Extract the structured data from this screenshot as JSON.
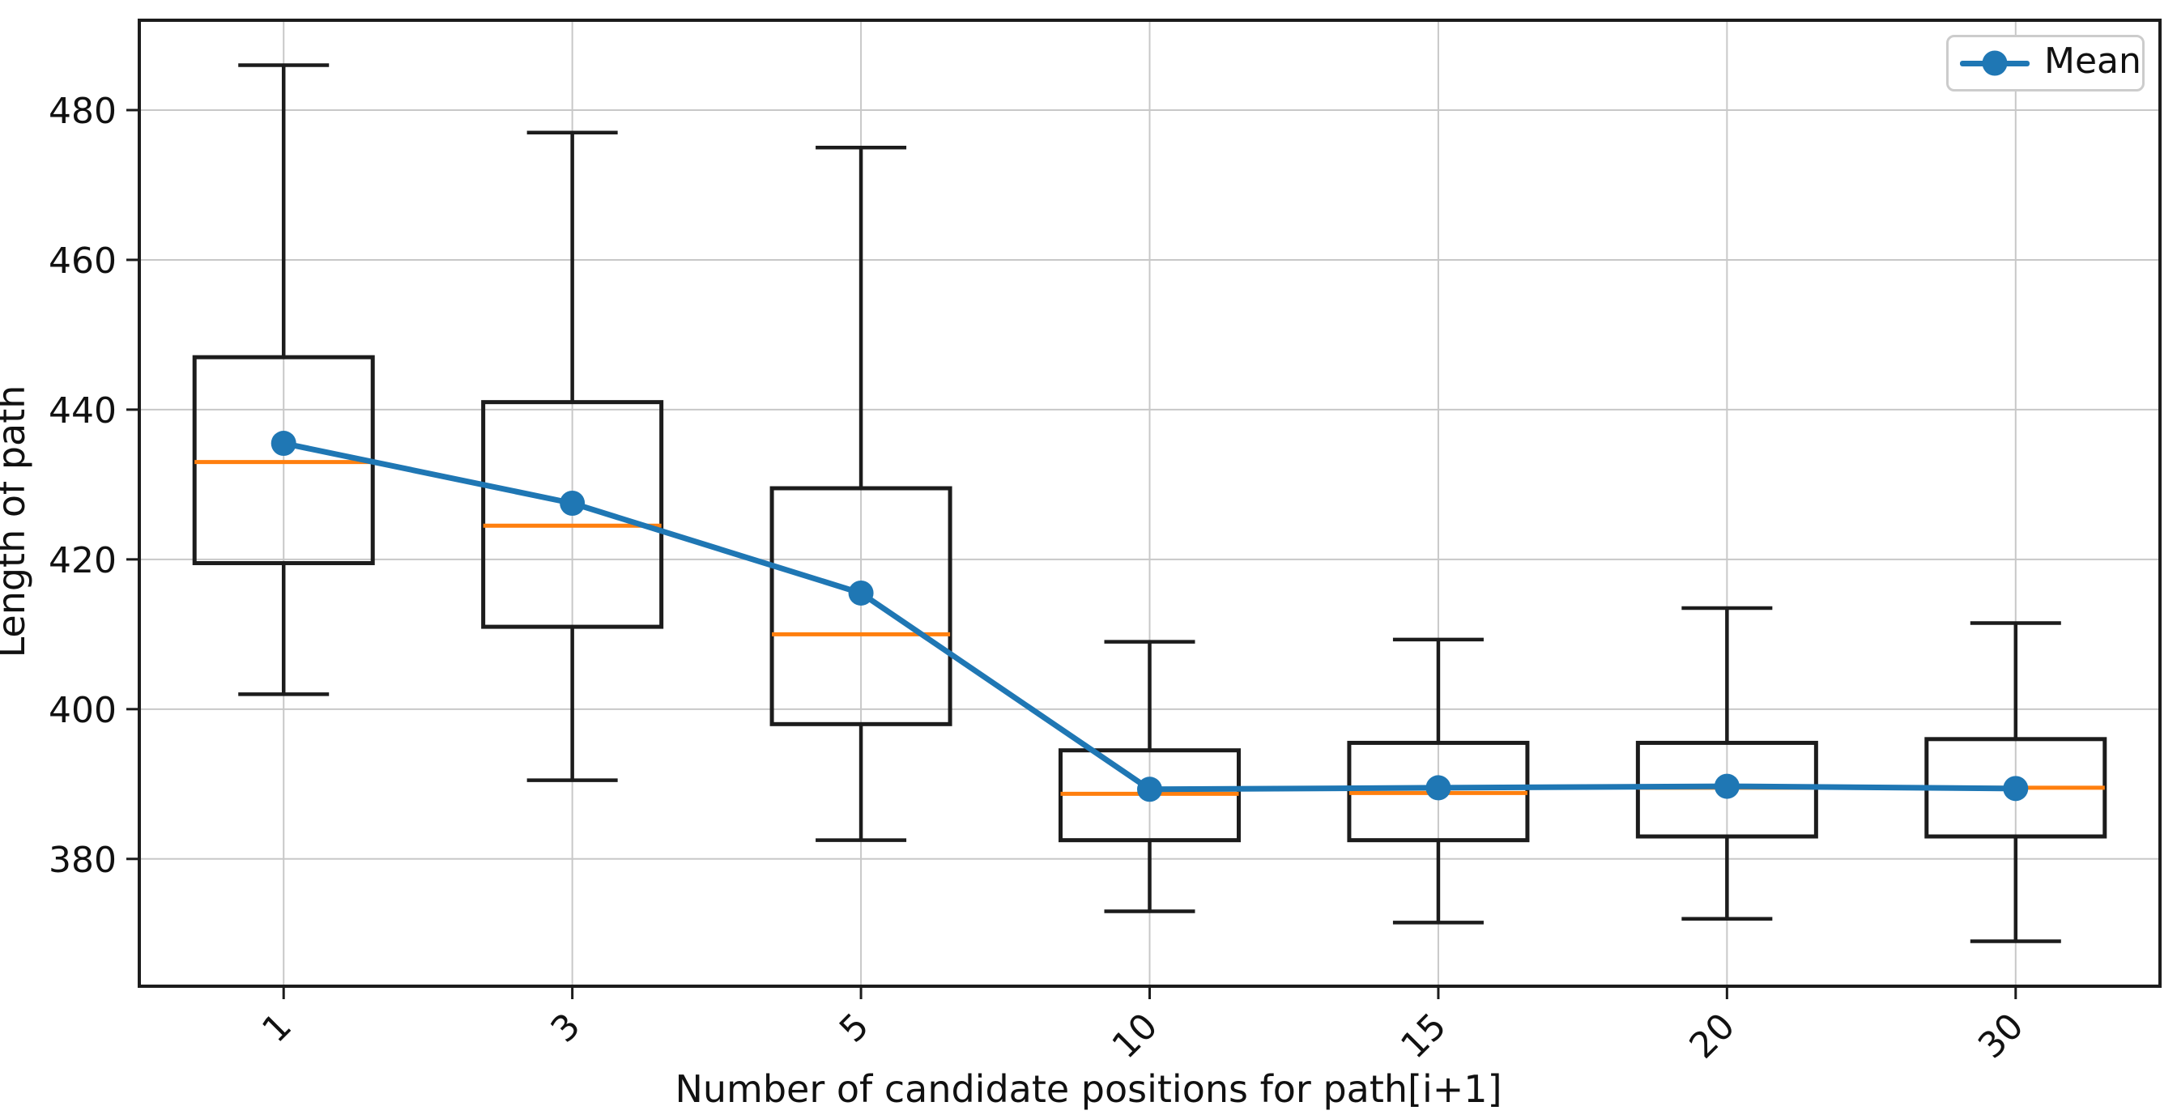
{
  "chart_data": {
    "type": "boxplot_with_mean_line",
    "title": "",
    "xlabel": "Number of candidate positions for path[i+1]",
    "ylabel": "Length of path",
    "categories": [
      "1",
      "3",
      "5",
      "10",
      "15",
      "20",
      "30"
    ],
    "y_ticks": [
      380,
      400,
      420,
      440,
      460,
      480
    ],
    "ylim": [
      363,
      492
    ],
    "grid": true,
    "x_tick_rotation_deg": 45,
    "legend": {
      "label": "Mean",
      "position": "upper right"
    },
    "boxes": [
      {
        "category": "1",
        "whisker_low": 402,
        "q1": 419.5,
        "median": 433,
        "q3": 447,
        "whisker_high": 486,
        "mean": 435.5
      },
      {
        "category": "3",
        "whisker_low": 390.5,
        "q1": 411,
        "median": 424.5,
        "q3": 441,
        "whisker_high": 477,
        "mean": 427.5
      },
      {
        "category": "5",
        "whisker_low": 382.5,
        "q1": 398,
        "median": 410,
        "q3": 429.5,
        "whisker_high": 475,
        "mean": 415.5
      },
      {
        "category": "10",
        "whisker_low": 373,
        "q1": 382.5,
        "median": 388.7,
        "q3": 394.5,
        "whisker_high": 409,
        "mean": 389.3
      },
      {
        "category": "15",
        "whisker_low": 371.5,
        "q1": 382.5,
        "median": 388.8,
        "q3": 395.5,
        "whisker_high": 409.3,
        "mean": 389.5
      },
      {
        "category": "20",
        "whisker_low": 372,
        "q1": 383,
        "median": 389.5,
        "q3": 395.5,
        "whisker_high": 413.5,
        "mean": 389.7
      },
      {
        "category": "30",
        "whisker_low": 369,
        "q1": 383,
        "median": 389.5,
        "q3": 396,
        "whisker_high": 411.5,
        "mean": 389.4
      }
    ],
    "series": [
      {
        "name": "Mean",
        "type": "line",
        "values": [
          435.5,
          427.5,
          415.5,
          389.3,
          389.5,
          389.7,
          389.4
        ]
      }
    ],
    "colors": {
      "mean_line": "#1f77b4",
      "median_line": "#ff7f0e",
      "box_stroke": "#1c1c1c",
      "grid": "#c8c8c8",
      "spine": "#1c1c1c",
      "tick_text": "#111111"
    }
  }
}
